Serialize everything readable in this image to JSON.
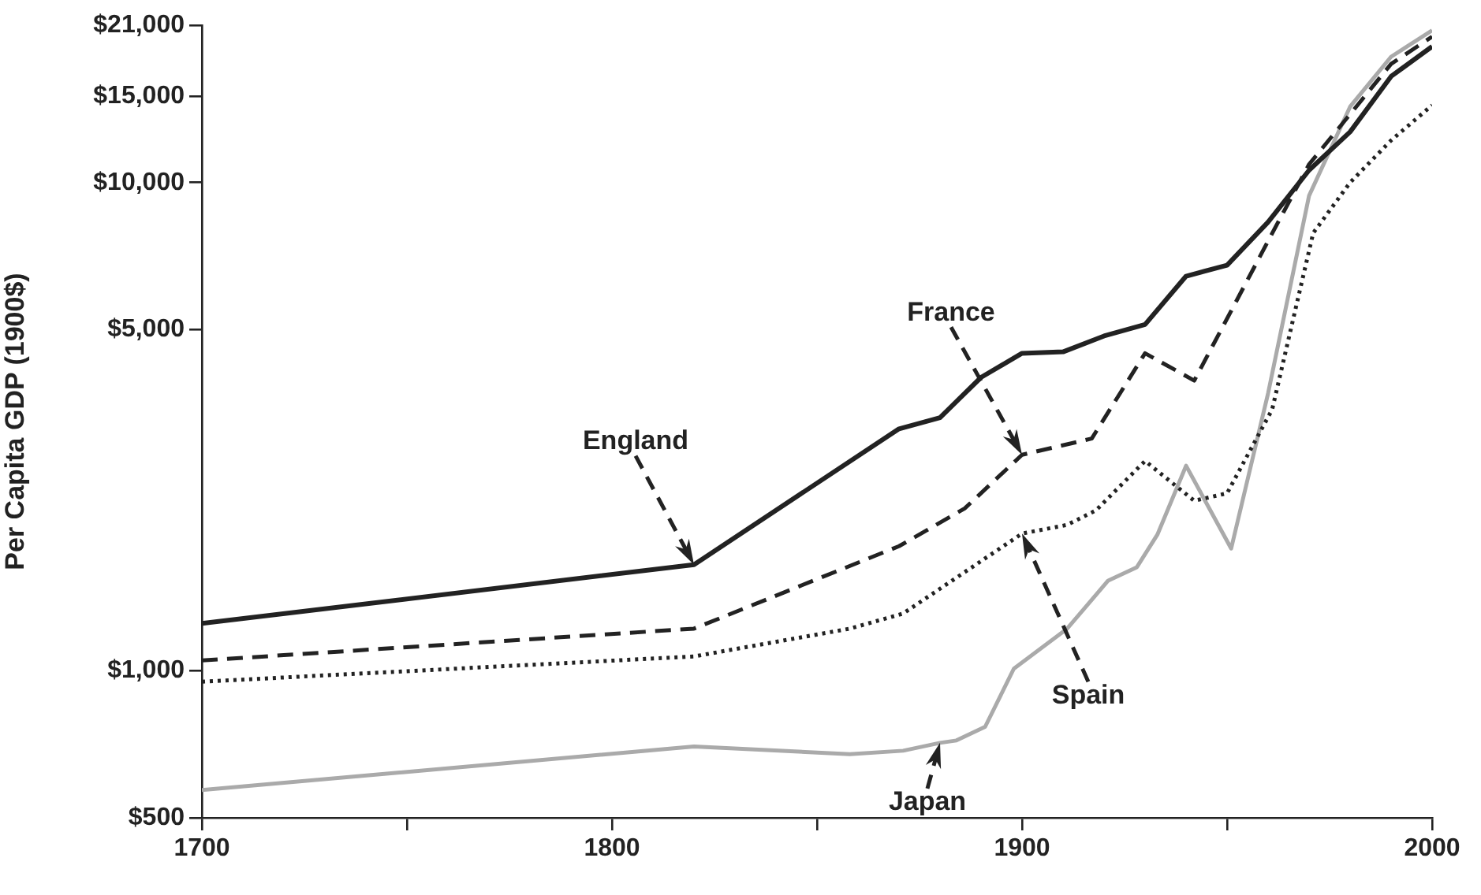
{
  "chart_data": {
    "type": "line",
    "ylabel": "Per Capita GDP (1900$)",
    "log": "y",
    "grid": false,
    "legend": false,
    "marker": "none",
    "xlim": [
      1700,
      2000
    ],
    "xticks": [
      1700,
      {
        "value": 1750,
        "label": null
      },
      1800,
      {
        "value": 1850,
        "label": null
      },
      1900,
      {
        "value": 1950,
        "label": null
      },
      2000
    ],
    "ylim": [
      500,
      21000
    ],
    "yticks": [
      {
        "value": 500,
        "label": "$500"
      },
      {
        "value": 1000,
        "label": "$1,000"
      },
      {
        "value": 5000,
        "label": "$5,000"
      },
      {
        "value": 10000,
        "label": "$10,000"
      },
      {
        "value": 15000,
        "label": "$15,000"
      },
      {
        "value": 21000,
        "label": "$21,000"
      }
    ],
    "series": [
      {
        "color": "#222222",
        "line_style": "solid",
        "x": [
          1700,
          1820,
          1870,
          1880,
          1890,
          1900,
          1910,
          1920,
          1930,
          1940,
          1950,
          1960,
          1970,
          1980,
          1990,
          2000
        ],
        "values": [
          1250,
          1650,
          3130,
          3300,
          3990,
          4470,
          4500,
          4850,
          5120,
          6430,
          6770,
          8300,
          10600,
          12700,
          16500,
          19000
        ]
      },
      {
        "color": "#222222",
        "line_style": "dashed",
        "x": [
          1700,
          1820,
          1870,
          1886,
          1900,
          1917,
          1930,
          1942,
          1961,
          1970,
          1980,
          1990,
          2000
        ],
        "values": [
          1050,
          1220,
          1800,
          2150,
          2770,
          2990,
          4470,
          3930,
          7870,
          10900,
          13800,
          17500,
          19900
        ]
      },
      {
        "color": "#222222",
        "line_style": "dotted",
        "x": [
          1700,
          1820,
          1858,
          1871,
          1900,
          1911,
          1918,
          1930,
          1942,
          1950,
          1961,
          1971,
          1980,
          1990,
          2000
        ],
        "values": [
          950,
          1070,
          1220,
          1310,
          1910,
          1990,
          2130,
          2690,
          2230,
          2310,
          3430,
          7880,
          10000,
          12200,
          14400
        ]
      },
      {
        "color": "#aaaaaa",
        "line_style": "solid",
        "x": [
          1700,
          1820,
          1858,
          1871,
          1880,
          1884,
          1891,
          1898,
          1911,
          1921,
          1928,
          1933,
          1940,
          1951,
          1960,
          1970,
          1980,
          1990,
          2000
        ],
        "values": [
          570,
          700,
          675,
          686,
          712,
          720,
          768,
          1010,
          1220,
          1530,
          1630,
          1900,
          2630,
          1780,
          3700,
          9400,
          14300,
          18100,
          20500
        ]
      }
    ],
    "annotations": [
      "England",
      "France",
      "Spain",
      "Japan"
    ]
  }
}
